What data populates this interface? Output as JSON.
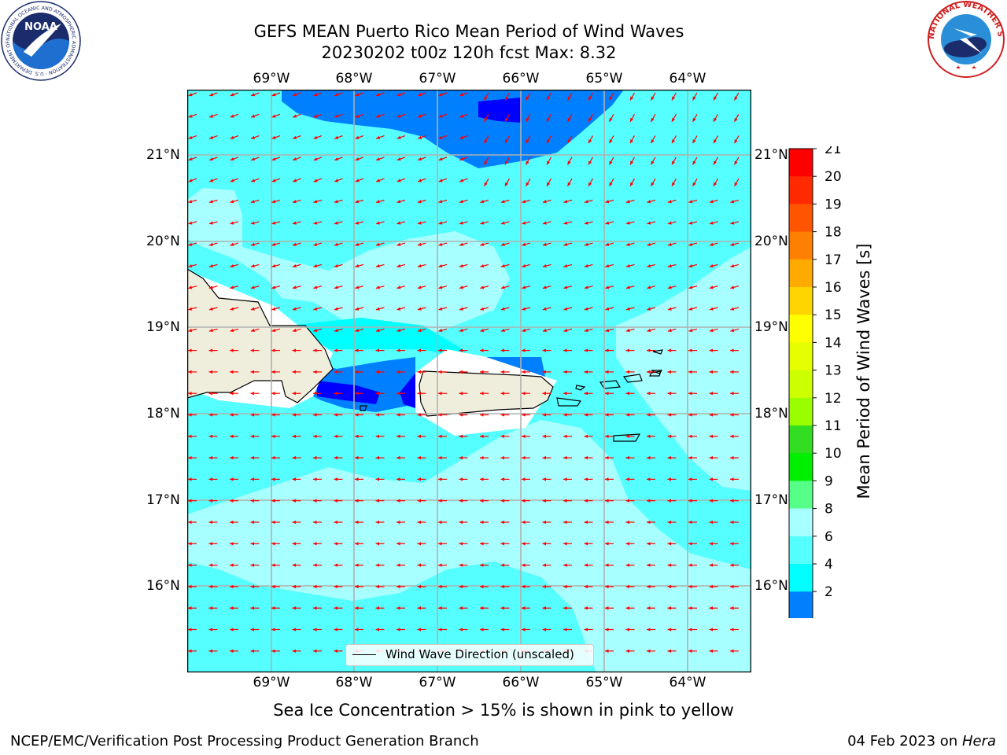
{
  "header": {
    "title_line1": "GEFS MEAN Puerto Rico Mean Period of Wind Waves",
    "title_line2": "20230202 t00z 120h fcst   Max: 8.32"
  },
  "logos": {
    "noaa_text": "NOAA",
    "noaa_ring_text": "NATIONAL OCEANIC AND ATMOSPHERIC ADMINISTRATION · U.S. DEPARTMENT OF COMMERCE",
    "nws_ring_text": "NATIONAL WEATHER SERVICE"
  },
  "map": {
    "lon_labels": [
      "69°W",
      "68°W",
      "67°W",
      "66°W",
      "65°W",
      "64°W"
    ],
    "lat_labels": [
      "21°N",
      "20°N",
      "19°N",
      "18°N",
      "17°N",
      "16°N"
    ],
    "legend_label": "Wind Wave Direction (unscaled)",
    "colors": {
      "ocean_light": "#a8ffff",
      "ocean_mid": "#55ffff",
      "ocean_cyan": "#00ffff",
      "ocean_blue": "#0080ff",
      "ocean_dark": "#0000ff",
      "land": "#efeedd",
      "arrow": "#ff0000",
      "grid": "#b0b0b0"
    }
  },
  "colorbar": {
    "label": "Mean Period of Wind Waves [s]",
    "ticks": [
      "21",
      "20",
      "19",
      "18",
      "17",
      "16",
      "15",
      "14",
      "13",
      "12",
      "11",
      "10",
      "9",
      "8",
      "6",
      "4",
      "2"
    ],
    "colors": [
      "#ff0000",
      "#ff2a00",
      "#ff5500",
      "#ff8000",
      "#ffaa00",
      "#ffd400",
      "#ffff00",
      "#e6ff00",
      "#ccff00",
      "#99ff00",
      "#33dd22",
      "#00ee00",
      "#55ff88",
      "#a8ffff",
      "#55ffff",
      "#00ffff",
      "#0080ff"
    ],
    "under_color": "#0000ff"
  },
  "footer": {
    "sea_ice_note": "Sea Ice Concentration > 15% is shown in pink to yellow",
    "branch": "NCEP/EMC/Verification Post Processing Product Generation Branch",
    "date_prefix": "04 Feb 2023 on ",
    "machine": "Hera"
  }
}
